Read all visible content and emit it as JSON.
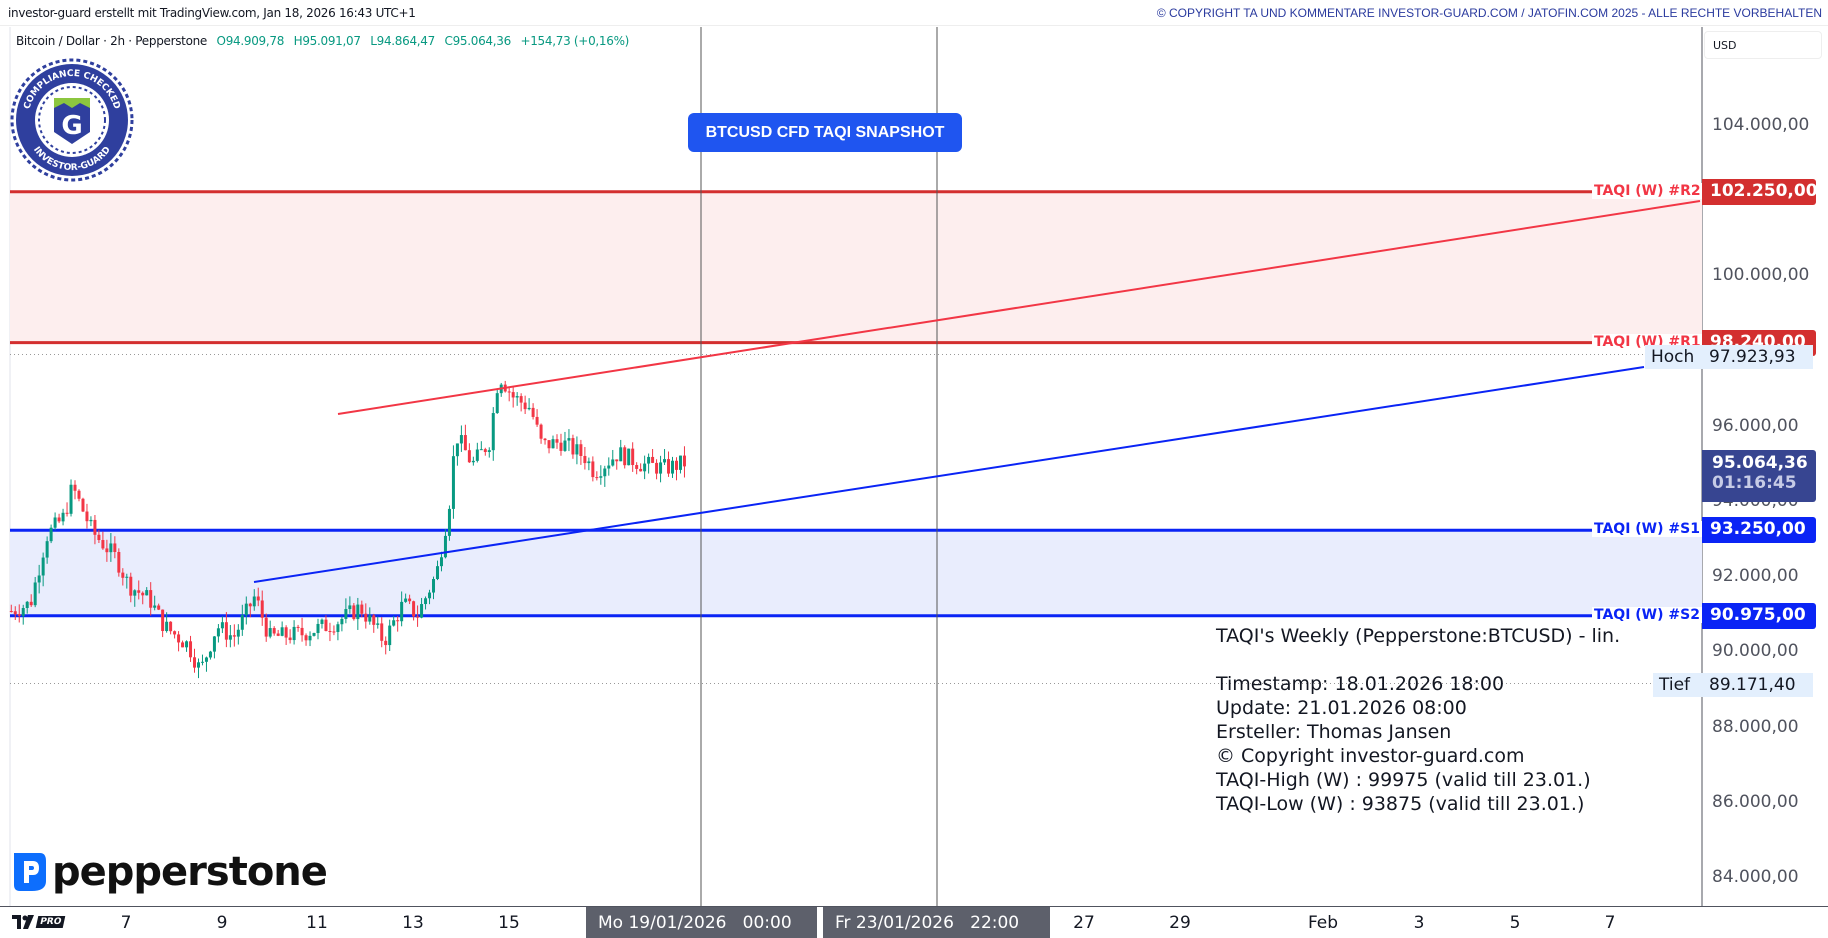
{
  "header": {
    "credit": "investor-guard erstellt mit TradingView.com, Jan 18, 2026 16:43 UTC+1",
    "copyright": "© COPYRIGHT TA UND KOMMENTARE INVESTOR-GUARD.COM / JATOFIN.COM 2025 - ALLE RECHTE VORBEHALTEN"
  },
  "legend": {
    "symbol": "Bitcoin / Dollar · 2h · Pepperstone",
    "open": "O94.909,78",
    "high": "H95.091,07",
    "low": "L94.864,47",
    "close": "C95.064,36",
    "change": "+154,73 (+0,16%)"
  },
  "currency": "USD",
  "title_button": "BTCUSD CFD TAQI SNAPSHOT",
  "badge": {
    "text_top": "COMPLIANCE CHECKED",
    "text_bottom": "INVESTOR-GUARD",
    "letter": "G"
  },
  "broker_logo": "pepperstone",
  "tv_logo": "PRO",
  "price_axis": {
    "ticks": [
      "104.000,00",
      "100.000,00",
      "96.000,00",
      "94.000,00",
      "92.000,00",
      "90.000,00",
      "88.000,00",
      "86.000,00",
      "84.000,00"
    ],
    "tick_values": [
      104000,
      100000,
      96000,
      94000,
      92000,
      90000,
      88000,
      86000,
      84000
    ]
  },
  "levels": [
    {
      "label": "TAQI (W) #R2",
      "value": 102250,
      "text": "102.250,00",
      "color": "#d32f2f"
    },
    {
      "label": "TAQI (W) #R1",
      "value": 98240,
      "text": "98.240,00",
      "color": "#d32f2f"
    },
    {
      "label": "TAQI (W) #S1",
      "value": 93250,
      "text": "93.250,00",
      "color": "#0a24f5"
    },
    {
      "label": "TAQI (W) #S2",
      "value": 90975,
      "text": "90.975,00",
      "color": "#0a24f5"
    }
  ],
  "high": {
    "label": "Hoch",
    "value": 97923.93,
    "text": "97.923,93"
  },
  "low": {
    "label": "Tief",
    "value": 89171.4,
    "text": "89.171,40"
  },
  "last": {
    "price": "95.064,36",
    "countdown": "01:16:45",
    "color": "#374591"
  },
  "info": [
    "TAQI's Weekly (Pepperstone:BTCUSD) - lin.",
    "",
    "Timestamp: 18.01.2026 18:00",
    "Update: 21.01.2026 08:00",
    "Ersteller: Thomas Jansen",
    "© Copyright investor-guard.com",
    "TAQI-High (W) : 99975 (valid till 23.01.)",
    "TAQI-Low (W) : 93875 (valid till 23.01.)"
  ],
  "time_axis": {
    "ticks": [
      "7",
      "9",
      "11",
      "13",
      "15",
      "27",
      "29",
      "Feb",
      "3",
      "5",
      "7"
    ],
    "cursor1": "Mo 19/01/2026   00:00",
    "cursor2": "Fr 23/01/2026   22:00"
  },
  "chart_data": {
    "type": "candlestick",
    "interval": "2h",
    "ylim": [
      83000,
      106000
    ],
    "colors": {
      "up": "#089981",
      "down": "#f23645"
    },
    "price_path": [
      [
        4.6,
        91100
      ],
      [
        5.0,
        91300
      ],
      [
        5.34,
        93100
      ],
      [
        5.7,
        93600
      ],
      [
        5.88,
        94400
      ],
      [
        6.3,
        93200
      ],
      [
        6.8,
        92500
      ],
      [
        7.05,
        91800
      ],
      [
        7.5,
        91400
      ],
      [
        7.8,
        90700
      ],
      [
        8.3,
        90200
      ],
      [
        8.56,
        89500
      ],
      [
        8.9,
        90700
      ],
      [
        9.25,
        90400
      ],
      [
        9.7,
        91500
      ],
      [
        10.0,
        90400
      ],
      [
        10.7,
        90500
      ],
      [
        11.4,
        90800
      ],
      [
        11.9,
        91200
      ],
      [
        12.4,
        90300
      ],
      [
        12.8,
        91300
      ],
      [
        13.1,
        91000
      ],
      [
        13.5,
        92100
      ],
      [
        13.75,
        93800
      ],
      [
        13.9,
        95800
      ],
      [
        14.25,
        95000
      ],
      [
        14.6,
        95600
      ],
      [
        14.8,
        97400
      ],
      [
        15.1,
        96800
      ],
      [
        15.46,
        96500
      ],
      [
        15.7,
        95500
      ],
      [
        16.1,
        95600
      ],
      [
        16.6,
        95200
      ],
      [
        16.8,
        94800
      ],
      [
        17.3,
        95300
      ],
      [
        17.8,
        95000
      ],
      [
        18.3,
        94900
      ],
      [
        18.75,
        95064
      ]
    ]
  }
}
